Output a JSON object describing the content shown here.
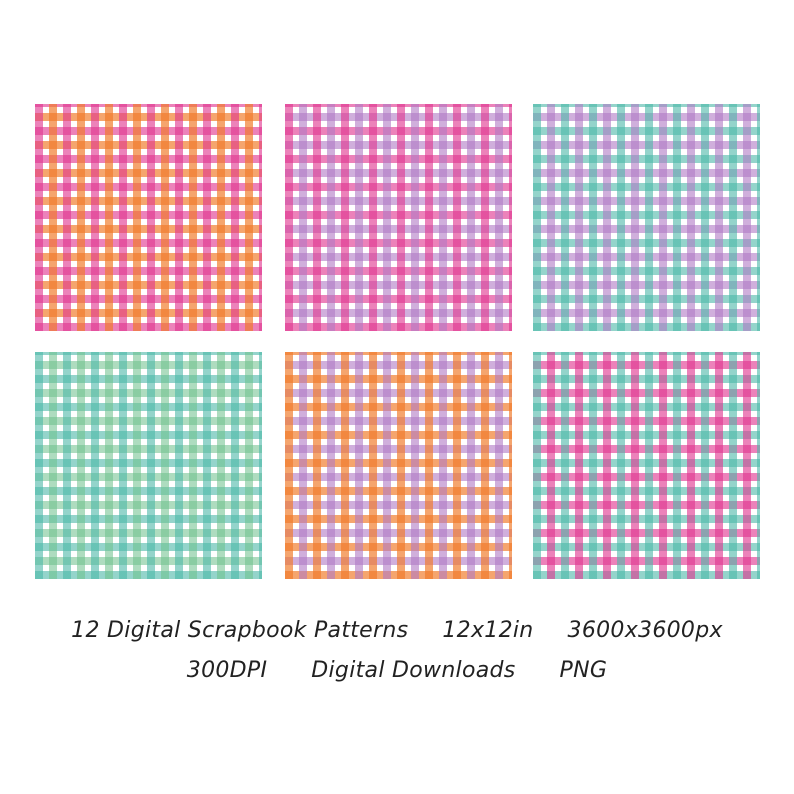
{
  "caption": {
    "line1": [
      "12 Digital Scrapbook Patterns",
      "12x12in",
      "3600x3600px"
    ],
    "line2": [
      "300DPI",
      "Digital Downloads",
      "PNG"
    ]
  }
}
